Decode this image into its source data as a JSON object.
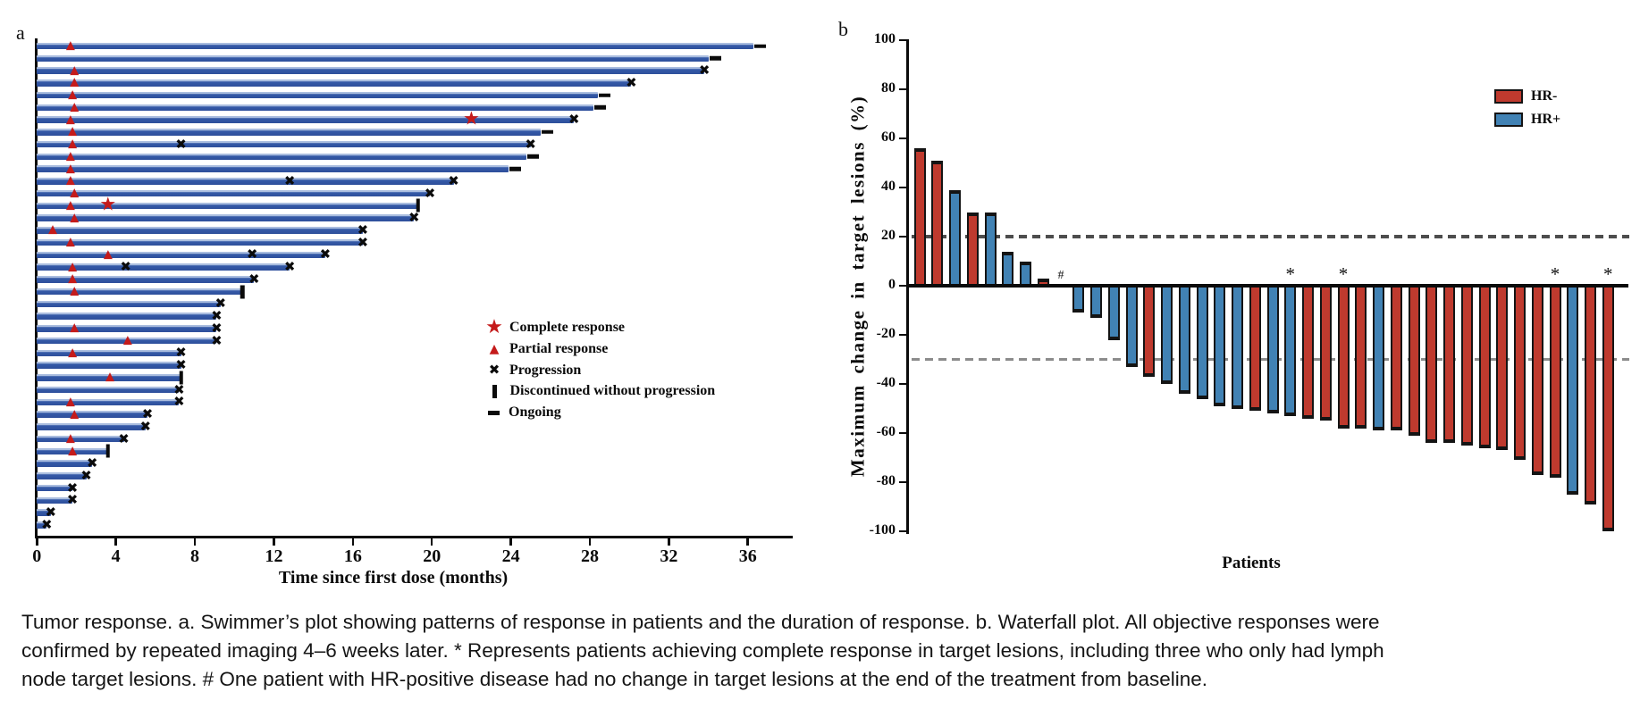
{
  "chart_data": [
    {
      "type": "swimmer",
      "panel_label": "a",
      "xlabel": "Time since first dose (months)",
      "x_ticks": [
        0,
        4,
        8,
        12,
        16,
        20,
        24,
        28,
        32,
        36
      ],
      "x_max": 38.2,
      "bar_color": "#2e4f9b",
      "response_marker_color": "#c41b1b",
      "legend": [
        {
          "type": "star",
          "glyph": "★",
          "label": "Complete response"
        },
        {
          "type": "triangle",
          "glyph": "▲",
          "label": "Partial response"
        },
        {
          "type": "x",
          "glyph": "✖",
          "label": "Progression"
        },
        {
          "type": "bar",
          "glyph": "▮",
          "label": "Discontinued without progression"
        },
        {
          "type": "dash",
          "glyph": "▬",
          "label": "Ongoing"
        }
      ],
      "patients": [
        {
          "months": 36.3,
          "end": "ongoing",
          "markers": [
            [
              "triangle",
              1.7
            ]
          ]
        },
        {
          "months": 34.0,
          "end": "ongoing",
          "markers": []
        },
        {
          "months": 33.8,
          "end": "progression",
          "markers": [
            [
              "triangle",
              1.9
            ]
          ]
        },
        {
          "months": 30.1,
          "end": "progression",
          "markers": [
            [
              "triangle",
              1.9
            ]
          ]
        },
        {
          "months": 28.4,
          "end": "ongoing",
          "markers": [
            [
              "triangle",
              1.8
            ]
          ]
        },
        {
          "months": 28.2,
          "end": "ongoing",
          "markers": [
            [
              "triangle",
              1.9
            ]
          ]
        },
        {
          "months": 27.2,
          "end": "progression",
          "markers": [
            [
              "triangle",
              1.7
            ],
            [
              "star",
              22.0
            ]
          ]
        },
        {
          "months": 25.5,
          "end": "ongoing",
          "markers": [
            [
              "triangle",
              1.8
            ]
          ]
        },
        {
          "months": 25.0,
          "end": "progression",
          "markers": [
            [
              "triangle",
              1.8
            ],
            [
              "x",
              7.3
            ]
          ]
        },
        {
          "months": 24.8,
          "end": "ongoing",
          "markers": [
            [
              "triangle",
              1.7
            ]
          ]
        },
        {
          "months": 23.9,
          "end": "ongoing",
          "markers": [
            [
              "triangle",
              1.7
            ]
          ]
        },
        {
          "months": 21.1,
          "end": "progression",
          "markers": [
            [
              "triangle",
              1.7
            ],
            [
              "x",
              12.8
            ]
          ]
        },
        {
          "months": 19.9,
          "end": "progression",
          "markers": [
            [
              "triangle",
              1.9
            ]
          ]
        },
        {
          "months": 19.3,
          "end": "discontinued",
          "markers": [
            [
              "triangle",
              1.7
            ],
            [
              "star",
              3.6
            ]
          ]
        },
        {
          "months": 19.1,
          "end": "progression",
          "markers": [
            [
              "triangle",
              1.9
            ]
          ]
        },
        {
          "months": 16.5,
          "end": "progression",
          "markers": [
            [
              "triangle",
              0.8
            ]
          ]
        },
        {
          "months": 16.5,
          "end": "progression",
          "markers": [
            [
              "triangle",
              1.7
            ]
          ]
        },
        {
          "months": 14.6,
          "end": "progression",
          "markers": [
            [
              "triangle",
              3.6
            ],
            [
              "x",
              10.9
            ]
          ]
        },
        {
          "months": 12.8,
          "end": "progression",
          "markers": [
            [
              "triangle",
              1.8
            ],
            [
              "x",
              4.5
            ]
          ]
        },
        {
          "months": 11.0,
          "end": "progression",
          "markers": [
            [
              "triangle",
              1.8
            ]
          ]
        },
        {
          "months": 10.4,
          "end": "discontinued",
          "markers": [
            [
              "triangle",
              1.9
            ]
          ]
        },
        {
          "months": 9.3,
          "end": "progression",
          "markers": []
        },
        {
          "months": 9.1,
          "end": "progression",
          "markers": []
        },
        {
          "months": 9.1,
          "end": "progression",
          "markers": [
            [
              "triangle",
              1.9
            ]
          ]
        },
        {
          "months": 9.1,
          "end": "progression",
          "markers": [
            [
              "triangle",
              4.6
            ]
          ]
        },
        {
          "months": 7.3,
          "end": "progression",
          "markers": [
            [
              "triangle",
              1.8
            ]
          ]
        },
        {
          "months": 7.3,
          "end": "progression",
          "markers": []
        },
        {
          "months": 7.3,
          "end": "discontinued",
          "markers": [
            [
              "triangle",
              3.7
            ]
          ]
        },
        {
          "months": 7.2,
          "end": "progression",
          "markers": []
        },
        {
          "months": 7.2,
          "end": "progression",
          "markers": [
            [
              "triangle",
              1.7
            ]
          ]
        },
        {
          "months": 5.6,
          "end": "progression",
          "markers": [
            [
              "triangle",
              1.9
            ]
          ]
        },
        {
          "months": 5.5,
          "end": "progression",
          "markers": []
        },
        {
          "months": 4.4,
          "end": "progression",
          "markers": [
            [
              "triangle",
              1.7
            ]
          ]
        },
        {
          "months": 3.6,
          "end": "discontinued",
          "markers": [
            [
              "triangle",
              1.8
            ]
          ]
        },
        {
          "months": 2.8,
          "end": "progression",
          "markers": []
        },
        {
          "months": 2.5,
          "end": "progression",
          "markers": []
        },
        {
          "months": 1.8,
          "end": "progression",
          "markers": []
        },
        {
          "months": 1.8,
          "end": "progression",
          "markers": []
        },
        {
          "months": 0.7,
          "end": "progression",
          "markers": []
        },
        {
          "months": 0.5,
          "end": "progression",
          "markers": []
        }
      ]
    },
    {
      "type": "bar",
      "panel_label": "b",
      "ylabel": "Maximum change in target lesions (%)",
      "xlabel": "Patients",
      "ylim": [
        -100,
        100
      ],
      "y_ticks": [
        100,
        80,
        60,
        40,
        20,
        0,
        -20,
        -40,
        -60,
        -80,
        -100
      ],
      "reference_lines": [
        20,
        -30
      ],
      "legend": [
        {
          "label": "HR-",
          "color": "#bf3a2e"
        },
        {
          "label": "HR+",
          "color": "#4182b4"
        }
      ],
      "values": [
        {
          "v": 56,
          "hr": "HR-"
        },
        {
          "v": 51,
          "hr": "HR-"
        },
        {
          "v": 39,
          "hr": "HR+"
        },
        {
          "v": 30,
          "hr": "HR-"
        },
        {
          "v": 30,
          "hr": "HR+"
        },
        {
          "v": 14,
          "hr": "HR+"
        },
        {
          "v": 10,
          "hr": "HR+"
        },
        {
          "v": 3,
          "hr": "HR-"
        },
        {
          "v": 0,
          "hr": "HR+",
          "note": "#"
        },
        {
          "v": -11,
          "hr": "HR+"
        },
        {
          "v": -13,
          "hr": "HR+"
        },
        {
          "v": -22,
          "hr": "HR+"
        },
        {
          "v": -33,
          "hr": "HR+"
        },
        {
          "v": -37,
          "hr": "HR-"
        },
        {
          "v": -40,
          "hr": "HR+"
        },
        {
          "v": -44,
          "hr": "HR+"
        },
        {
          "v": -46,
          "hr": "HR+"
        },
        {
          "v": -49,
          "hr": "HR+"
        },
        {
          "v": -50,
          "hr": "HR+"
        },
        {
          "v": -51,
          "hr": "HR-"
        },
        {
          "v": -52,
          "hr": "HR+"
        },
        {
          "v": -53,
          "hr": "HR+",
          "note": "*"
        },
        {
          "v": -54,
          "hr": "HR-"
        },
        {
          "v": -55,
          "hr": "HR-"
        },
        {
          "v": -58,
          "hr": "HR-",
          "note": "*"
        },
        {
          "v": -58,
          "hr": "HR-"
        },
        {
          "v": -59,
          "hr": "HR+"
        },
        {
          "v": -59,
          "hr": "HR-"
        },
        {
          "v": -61,
          "hr": "HR-"
        },
        {
          "v": -64,
          "hr": "HR-"
        },
        {
          "v": -64,
          "hr": "HR-"
        },
        {
          "v": -65,
          "hr": "HR-"
        },
        {
          "v": -66,
          "hr": "HR-"
        },
        {
          "v": -67,
          "hr": "HR-"
        },
        {
          "v": -71,
          "hr": "HR-"
        },
        {
          "v": -77,
          "hr": "HR-"
        },
        {
          "v": -78,
          "hr": "HR-",
          "note": "*"
        },
        {
          "v": -85,
          "hr": "HR+"
        },
        {
          "v": -89,
          "hr": "HR-"
        },
        {
          "v": -100,
          "hr": "HR-",
          "note": "*"
        }
      ]
    }
  ],
  "caption": {
    "lines": [
      "Tumor response. a. Swimmer’s plot showing patterns of response in patients and the duration of response. b. Waterfall plot. All objective responses were",
      "confirmed by repeated imaging 4–6 weeks later. * Represents patients achieving complete response in target lesions, including three who only had lymph",
      "node target lesions. # One patient with HR-positive disease had no change in target lesions at the end of the treatment from baseline."
    ]
  }
}
